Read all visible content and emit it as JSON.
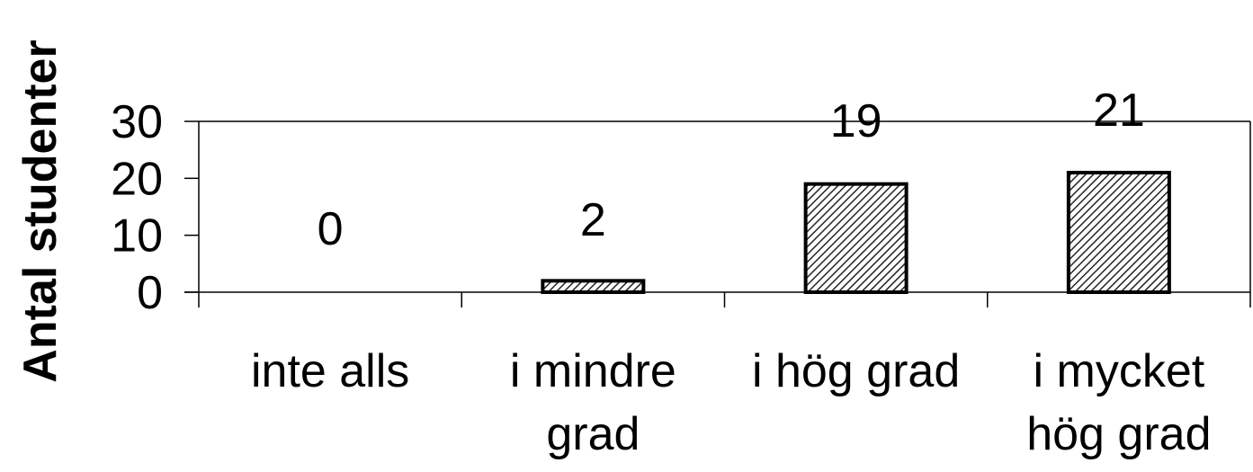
{
  "chart_data": {
    "type": "bar",
    "xlabel": "",
    "ylabel": "Antal studenter",
    "ylim": [
      0,
      30
    ],
    "yticks": [
      "0",
      "10",
      "20",
      "30"
    ],
    "grid": false,
    "categories": [
      [
        "inte alls"
      ],
      [
        "i mindre",
        "grad"
      ],
      [
        "i hög grad"
      ],
      [
        "i mycket",
        "hög grad"
      ]
    ],
    "values": [
      0,
      2,
      19,
      21
    ],
    "data_labels": [
      "0",
      "2",
      "19",
      "21"
    ],
    "bar_fill": "#d0d0d0",
    "bar_pattern": "diagonal-hatch",
    "bar_stroke": "#000000"
  }
}
